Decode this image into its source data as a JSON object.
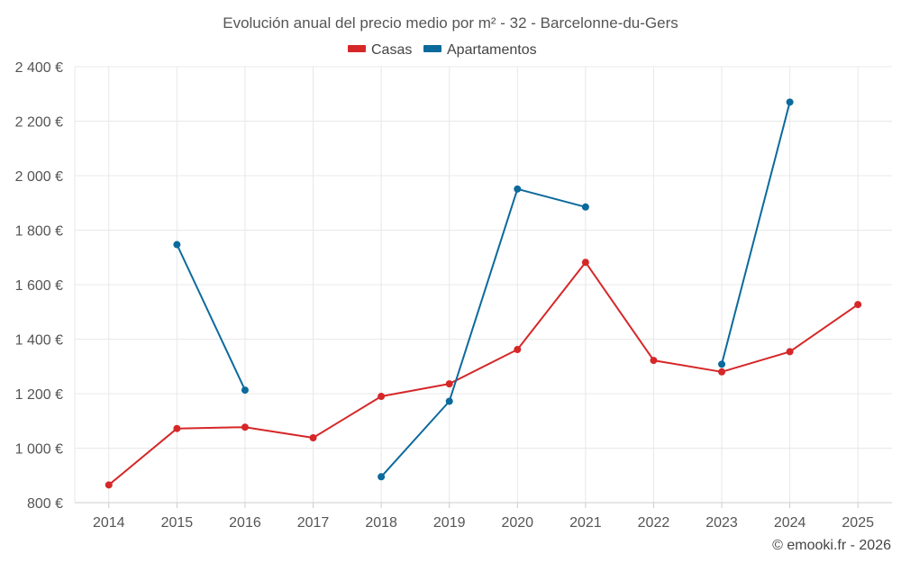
{
  "chart_data": {
    "type": "line",
    "title": "Evolución anual del precio medio por m² - 32 - Barcelonne-du-Gers",
    "categories": [
      "2014",
      "2015",
      "2016",
      "2017",
      "2018",
      "2019",
      "2020",
      "2021",
      "2022",
      "2023",
      "2024",
      "2025"
    ],
    "ylim": [
      800,
      2400
    ],
    "yticks": [
      800,
      1000,
      1200,
      1400,
      1600,
      1800,
      2000,
      2200,
      2400
    ],
    "ytick_labels": [
      "800 €",
      "1 000 €",
      "1 200 €",
      "1 400 €",
      "1 600 €",
      "1 800 €",
      "2 000 €",
      "2 200 €",
      "2 400 €"
    ],
    "grid": true,
    "legend_position": "top-center",
    "series": [
      {
        "name": "Casas",
        "color": "#d62728",
        "values": [
          865,
          1072,
          1077,
          1038,
          1190,
          1236,
          1362,
          1682,
          1322,
          1280,
          1354,
          1527
        ]
      },
      {
        "name": "Apartamentos",
        "color": "#0b6a9c",
        "values": [
          null,
          1747,
          1213,
          null,
          895,
          1172,
          1951,
          1885,
          null,
          1308,
          2270,
          null
        ]
      }
    ]
  },
  "credit": "© emooki.fr - 2026"
}
